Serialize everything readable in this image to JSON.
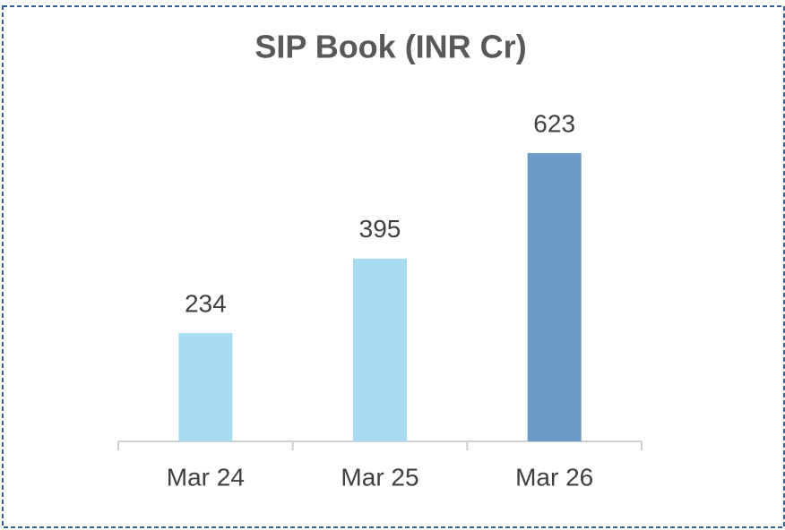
{
  "chart_data": {
    "type": "bar",
    "title": "SIP Book (INR Cr)",
    "categories": [
      "Mar 24",
      "Mar 25",
      "Mar 26"
    ],
    "values": [
      234,
      395,
      623
    ],
    "colors": [
      "#a9dcf2",
      "#a9dcf2",
      "#6b9ac6"
    ]
  }
}
